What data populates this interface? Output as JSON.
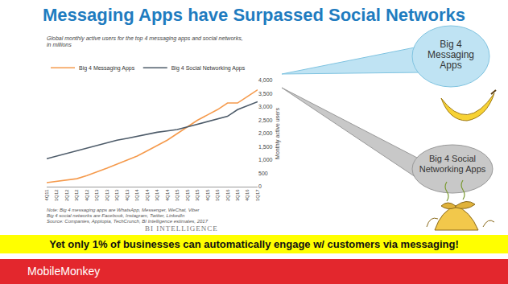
{
  "slide": {
    "title": "Messaging Apps have Surpassed Social Networks",
    "callouts": [
      "Big 4 Messaging Apps",
      "Big 4 Social Networking Apps"
    ],
    "banner": "Yet only 1% of businesses can automatically engage w/ customers via messaging!",
    "logo": "MobileMonkey"
  },
  "chart_data": {
    "type": "line",
    "title": "Global monthly active users for the top 4 messaging apps and social networks, in millions",
    "y_label": "Monthly active users",
    "categories": [
      "4Q11",
      "1Q12",
      "2Q12",
      "3Q12",
      "4Q12",
      "1Q13",
      "2Q13",
      "3Q13",
      "4Q13",
      "1Q14",
      "2Q14",
      "3Q14",
      "4Q14",
      "1Q15",
      "2Q15",
      "3Q15",
      "4Q15",
      "1Q16",
      "2Q16",
      "3Q16",
      "4Q16",
      "1Q17"
    ],
    "series": [
      {
        "name": "Big 4 Messaging Apps",
        "color": "#f59a4c",
        "values": [
          150,
          200,
          250,
          300,
          420,
          550,
          700,
          850,
          1000,
          1150,
          1350,
          1550,
          1750,
          2000,
          2250,
          2500,
          2700,
          2900,
          3150,
          3150,
          3400,
          3650
        ]
      },
      {
        "name": "Big 4 Social Networking Apps",
        "color": "#4d5b69",
        "values": [
          1050,
          1150,
          1250,
          1350,
          1450,
          1550,
          1650,
          1750,
          1820,
          1900,
          1980,
          2050,
          2100,
          2150,
          2250,
          2350,
          2450,
          2550,
          2650,
          2900,
          3050,
          3200
        ]
      }
    ],
    "ylim": [
      0,
      4000
    ],
    "yticks": [
      0,
      500,
      {
        "value": 1000,
        "label": "1,000"
      },
      {
        "value": 1500,
        "label": "1,500"
      },
      {
        "value": 2000,
        "label": "2,000"
      },
      {
        "value": 2500,
        "label": "2,500"
      },
      {
        "value": 3000,
        "label": "3,000"
      },
      {
        "value": 3500,
        "label": "3,500"
      },
      {
        "value": 4000,
        "label": "4,000"
      }
    ],
    "grid": false,
    "legend": "top-left",
    "notes": [
      "Note: Big 4 messaging apps are WhatsApp, Messenger, WeChat, Viber",
      "Big 4 social networks are Facebook, Instagram, Twitter, LinkedIn",
      "Source: Companies, Apptopia, TechCrunch, BI Intelligence estimates, 2017"
    ],
    "annotations": [
      "BI INTELLIGENCE"
    ]
  }
}
